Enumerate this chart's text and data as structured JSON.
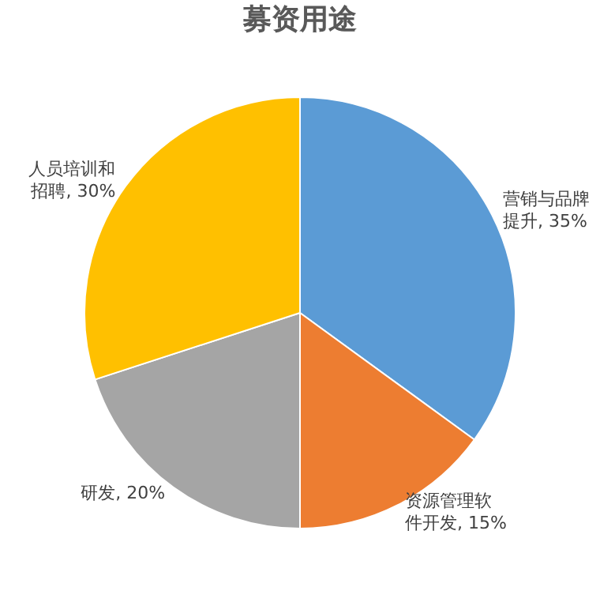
{
  "chart_data": {
    "type": "pie",
    "title": "募资用途",
    "categories": [
      "营销与品牌提升",
      "资源管理软件开发",
      "研发",
      "人员培训和招聘"
    ],
    "values": [
      35,
      15,
      20,
      30
    ],
    "value_labels": [
      "35%",
      "15%",
      "20%",
      "30%"
    ],
    "colors": [
      "#5b9bd5",
      "#ed7d31",
      "#a5a5a5",
      "#ffc000"
    ],
    "legend": false
  }
}
